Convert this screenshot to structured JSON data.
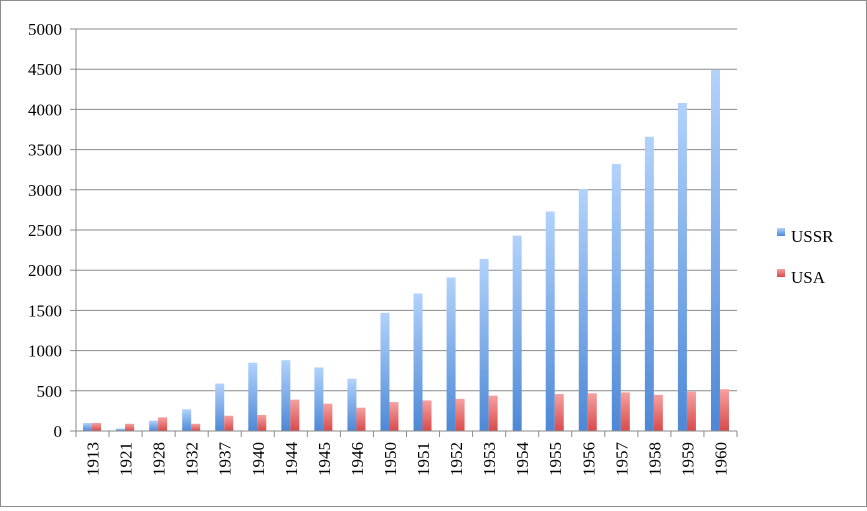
{
  "chart_data": {
    "type": "bar",
    "title": "",
    "xlabel": "",
    "ylabel": "",
    "ylim": [
      0,
      5000
    ],
    "yticks": [
      0,
      500,
      1000,
      1500,
      2000,
      2500,
      3000,
      3500,
      4000,
      4500,
      5000
    ],
    "grid": true,
    "legend_position": "right",
    "categories": [
      "1913",
      "1921",
      "1928",
      "1932",
      "1937",
      "1940",
      "1944",
      "1945",
      "1946",
      "1950",
      "1951",
      "1952",
      "1953",
      "1954",
      "1955",
      "1956",
      "1957",
      "1958",
      "1959",
      "1960"
    ],
    "series": [
      {
        "name": "USSR",
        "color": "#4f8fdc",
        "values": [
          100,
          30,
          130,
          270,
          590,
          850,
          880,
          790,
          650,
          1470,
          1710,
          1910,
          2140,
          2430,
          2730,
          3010,
          3320,
          3660,
          4080,
          4490
        ]
      },
      {
        "name": "USA",
        "color": "#e04545",
        "values": [
          100,
          90,
          170,
          90,
          190,
          200,
          390,
          340,
          290,
          360,
          380,
          400,
          440,
          0,
          460,
          470,
          480,
          450,
          490,
          520
        ]
      }
    ]
  }
}
